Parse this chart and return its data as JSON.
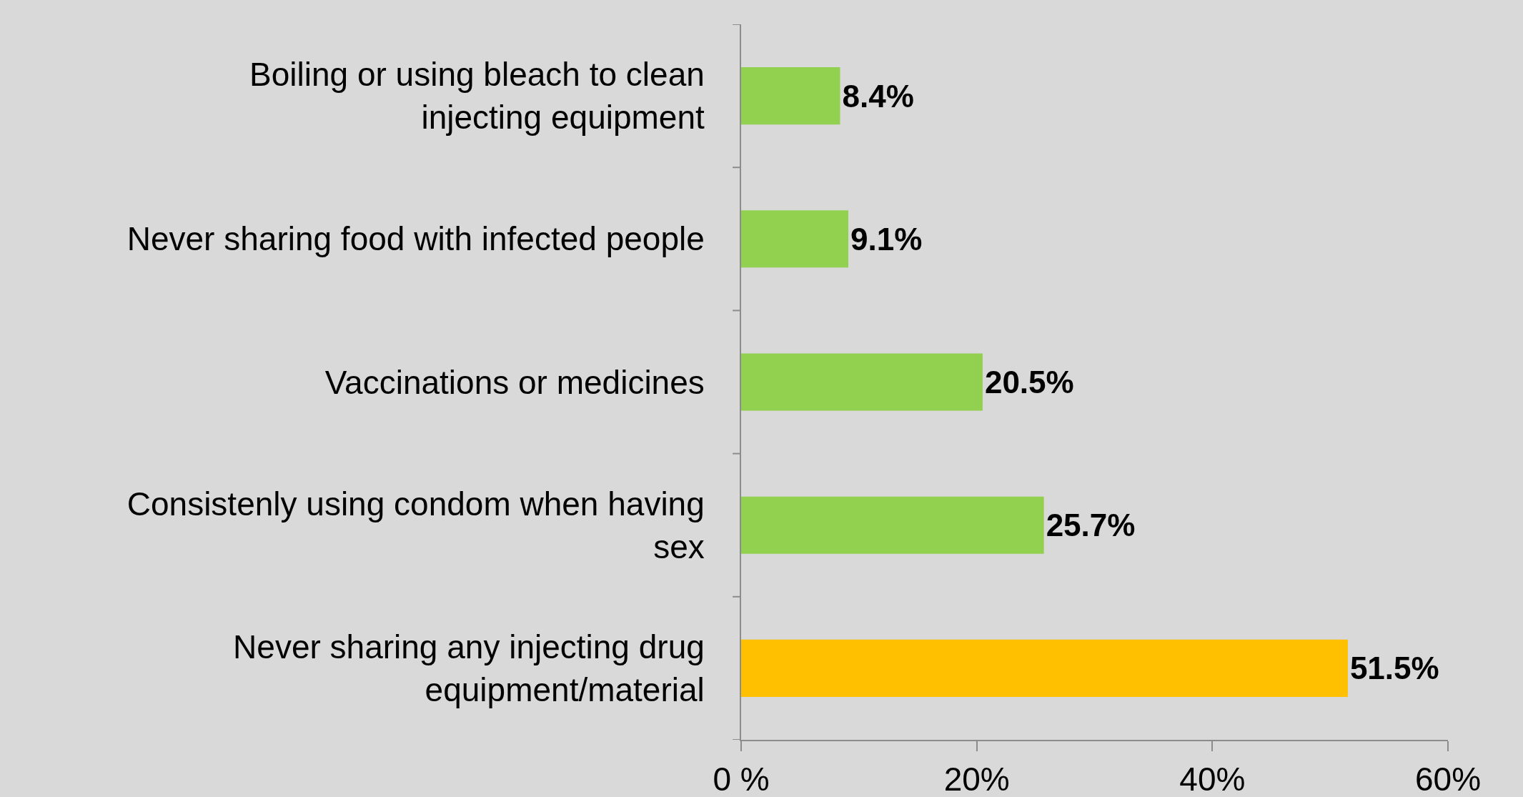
{
  "chart_data": {
    "type": "bar",
    "orientation": "horizontal",
    "categories": [
      "Boiling or using bleach to clean injecting equipment",
      "Never sharing food with infected people",
      "Vaccinations or medicines",
      "Consistenly using condom when having sex",
      "Never sharing any injecting drug equipment/material"
    ],
    "values": [
      8.4,
      9.1,
      20.5,
      25.7,
      51.5
    ],
    "value_labels": [
      "8.4%",
      "9.1%",
      "20.5%",
      "25.7%",
      "51.5%"
    ],
    "colors": [
      "#92d050",
      "#92d050",
      "#92d050",
      "#92d050",
      "#ffc000"
    ],
    "xlim": [
      0,
      60
    ],
    "xticks": [
      {
        "value": 0,
        "label": "0 %"
      },
      {
        "value": 20,
        "label": "20%"
      },
      {
        "value": 40,
        "label": "40%"
      },
      {
        "value": 60,
        "label": "60%"
      }
    ],
    "grid": false,
    "legend": false
  }
}
